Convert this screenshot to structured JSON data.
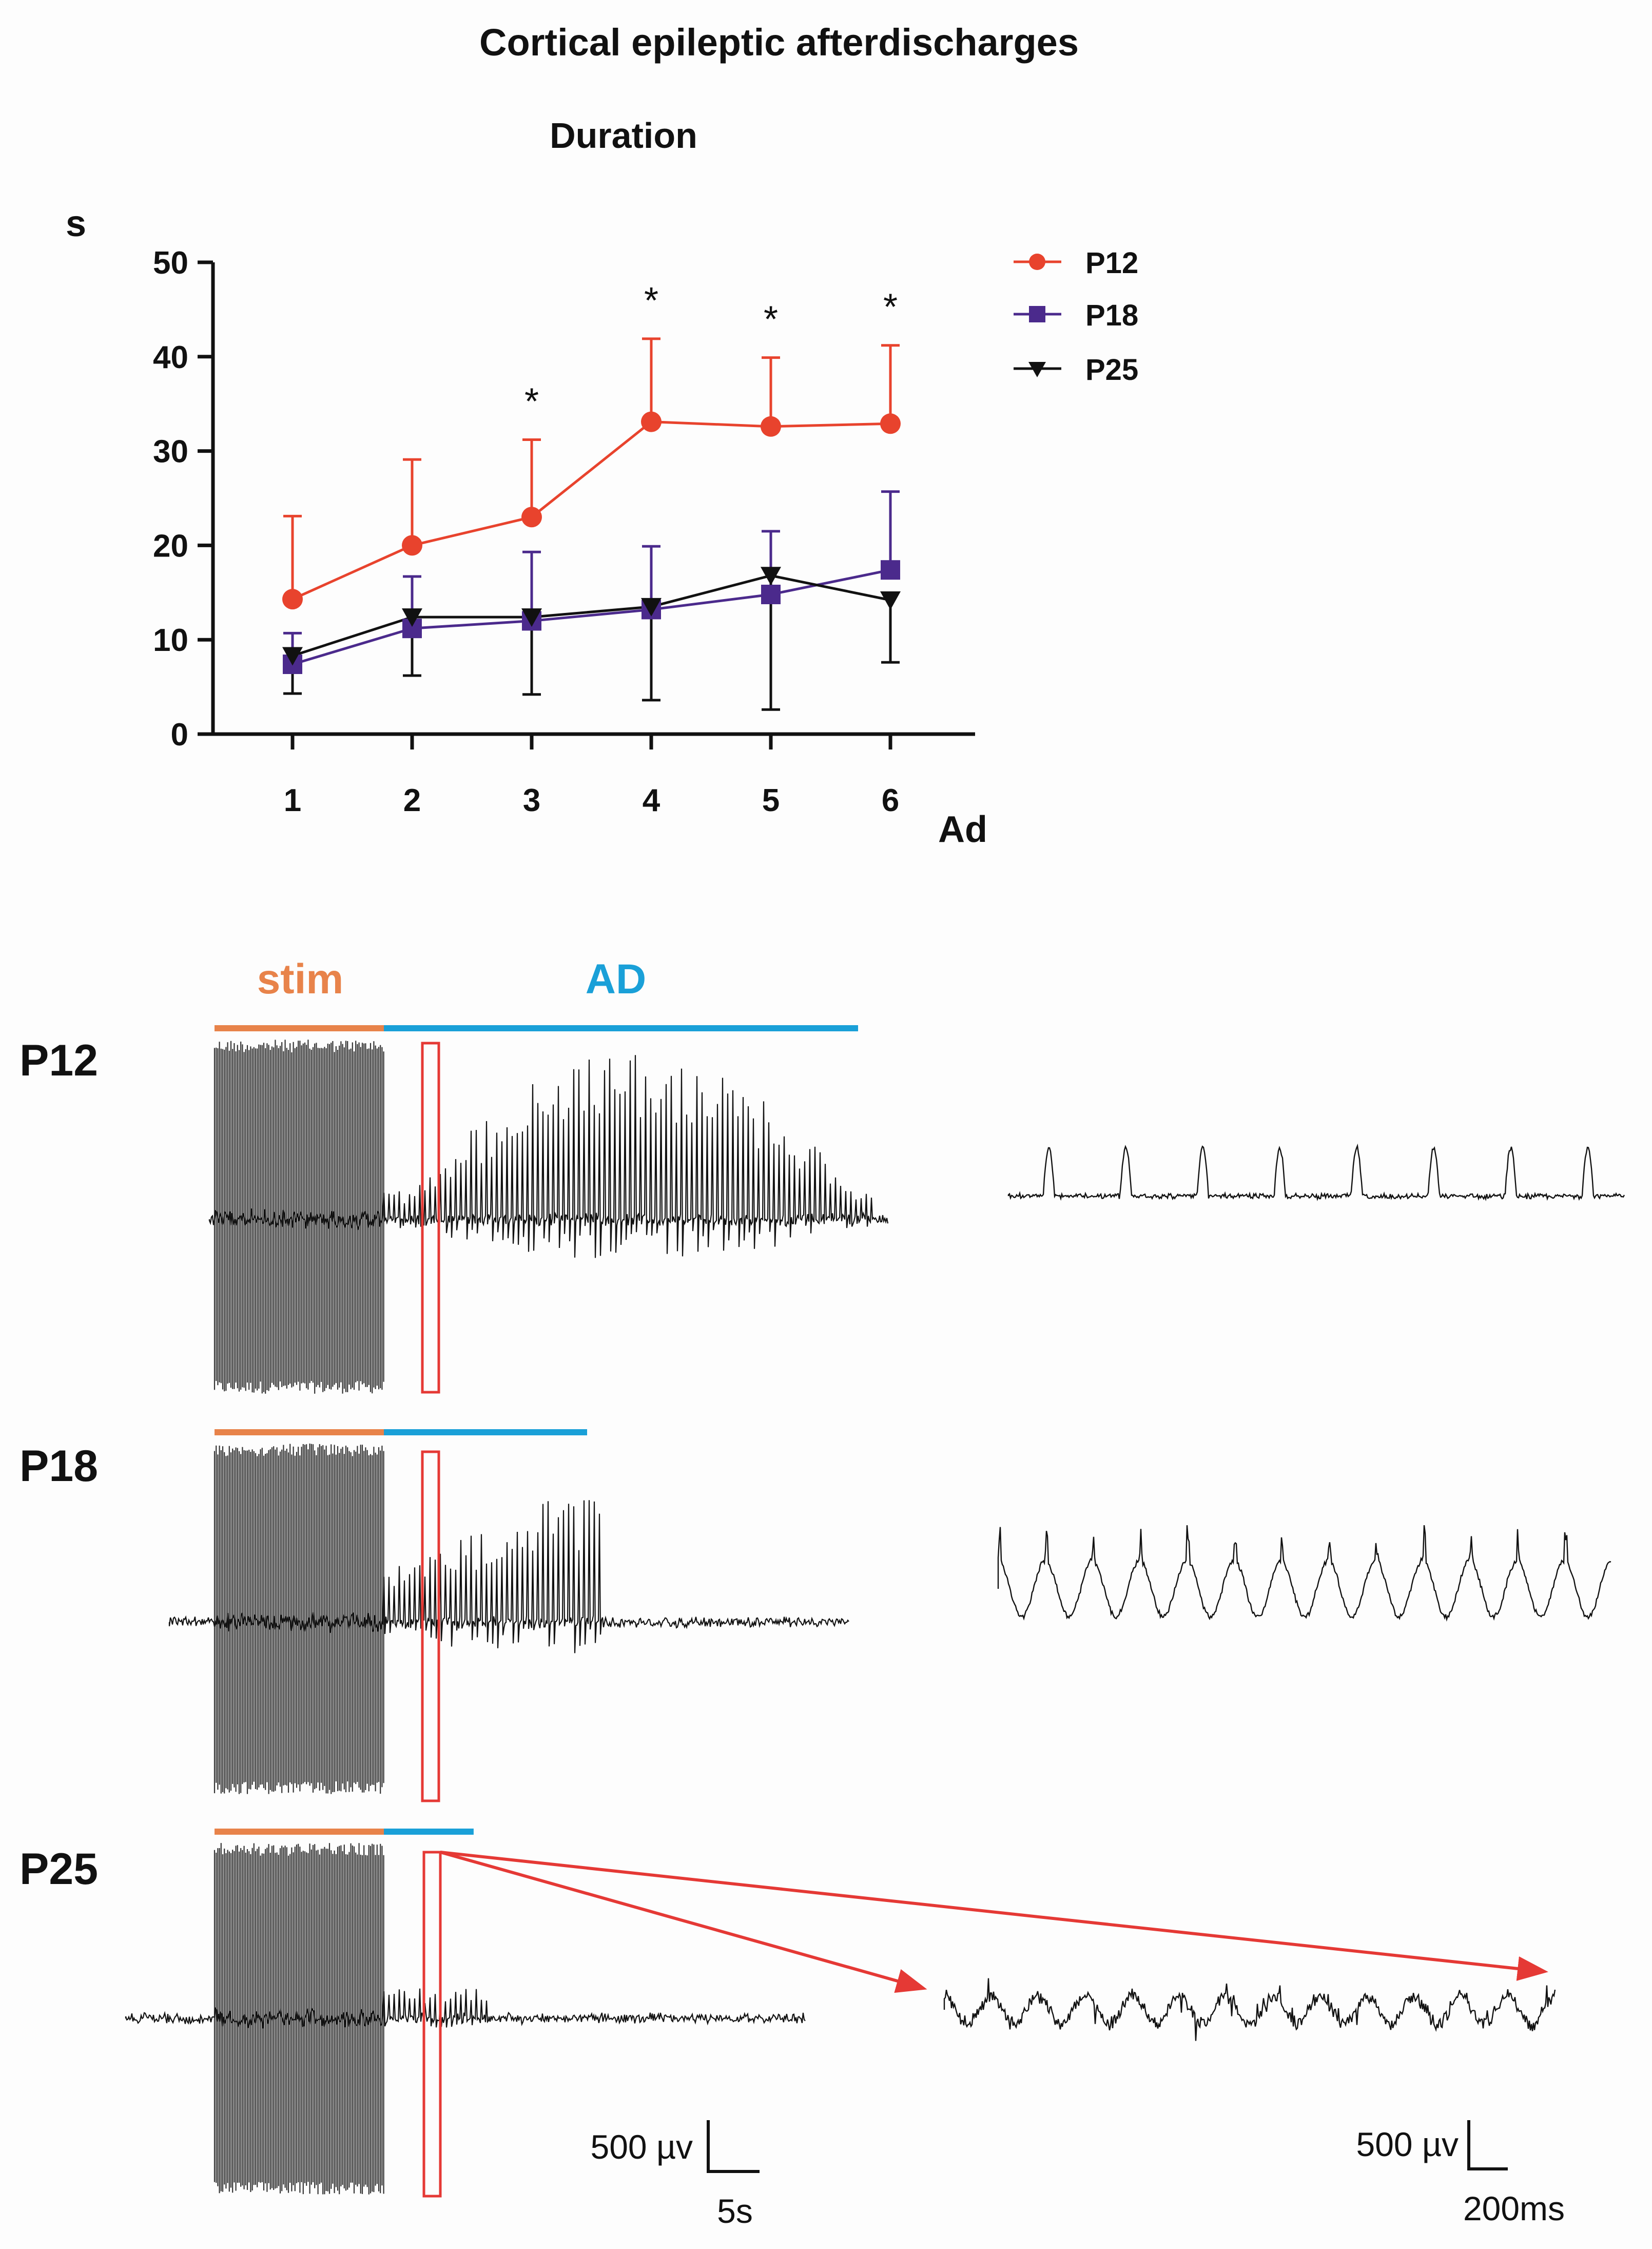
{
  "figure": {
    "title": "Cortical epileptic afterdischarges"
  },
  "chart_data": {
    "type": "line",
    "title": "Duration",
    "ylabel": "s",
    "xlabel": "Ad",
    "categories": [
      1,
      2,
      3,
      4,
      5,
      6
    ],
    "ylim": [
      0,
      50
    ],
    "yticks": [
      0,
      10,
      20,
      30,
      40,
      50
    ],
    "legend_position": "top-right",
    "series": [
      {
        "name": "P12",
        "color": "#e8432d",
        "marker": "circle",
        "values": [
          14.3,
          20.0,
          23.0,
          33.1,
          32.6,
          32.9
        ],
        "sd": [
          8.8,
          9.1,
          8.2,
          8.8,
          7.3,
          8.3
        ]
      },
      {
        "name": "P18",
        "color": "#4b2a8c",
        "marker": "square",
        "values": [
          7.4,
          11.2,
          12.0,
          13.2,
          14.8,
          17.4
        ],
        "sd": [
          3.3,
          5.5,
          7.3,
          6.7,
          6.7,
          8.3
        ]
      },
      {
        "name": "P25",
        "color": "#111111",
        "marker": "triangle-down",
        "values": [
          8.3,
          12.4,
          12.4,
          13.5,
          16.8,
          14.2
        ],
        "sd": [
          4.0,
          6.2,
          8.2,
          9.9,
          14.2,
          6.6
        ]
      }
    ],
    "significance": [
      {
        "category": 3,
        "label": "*"
      },
      {
        "category": 4,
        "label": "*"
      },
      {
        "category": 5,
        "label": "*"
      },
      {
        "category": 6,
        "label": "*"
      }
    ]
  },
  "traces": {
    "stim_label": "stim",
    "ad_label": "AD",
    "stim_color": "#e8834a",
    "ad_color": "#1aa0d8",
    "highlight_color": "#e53935",
    "rows": [
      {
        "name": "P12",
        "stim_duration_s": 10,
        "ad_duration_s": 28
      },
      {
        "name": "P18",
        "stim_duration_s": 10,
        "ad_duration_s": 12
      },
      {
        "name": "P25",
        "stim_duration_s": 10,
        "ad_duration_s": 5.3
      }
    ],
    "scale_left": {
      "amplitude": "500 µv",
      "time": "5s"
    },
    "scale_right": {
      "amplitude": "500 µv",
      "time": "200ms"
    }
  }
}
